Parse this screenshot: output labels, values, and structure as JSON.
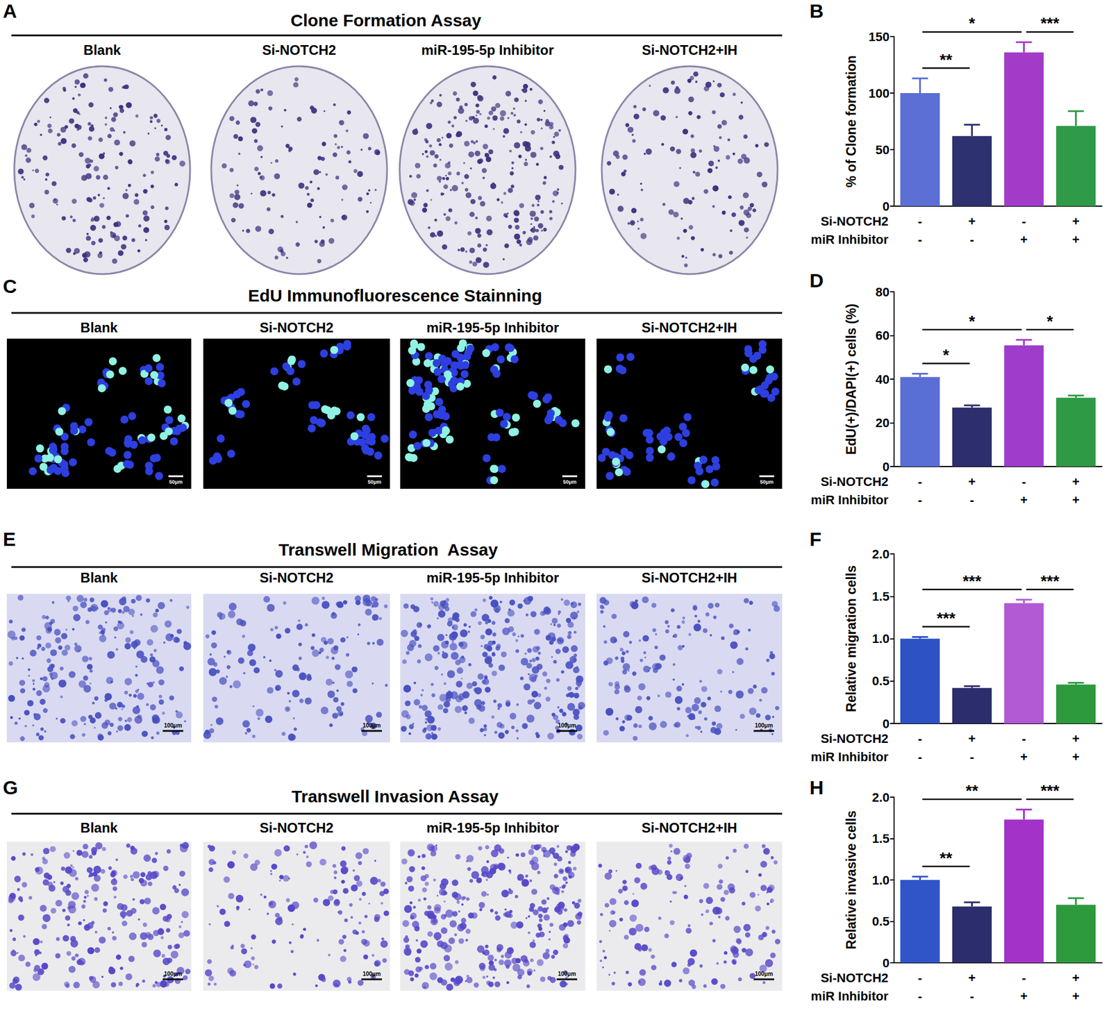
{
  "chart_data": [
    {
      "type": "bar",
      "title": "B",
      "y_label": "% of Clone formation",
      "categories": [
        null,
        null,
        null,
        null
      ],
      "x_rows": [
        {
          "label": "Si-NOTCH2",
          "marks": [
            "-",
            "+",
            "-",
            "+"
          ]
        },
        {
          "label": "miR Inhibitor",
          "marks": [
            "-",
            "-",
            "+",
            "+"
          ]
        }
      ],
      "values": [
        100,
        62,
        136,
        71
      ],
      "errors": [
        13,
        10,
        9,
        13
      ],
      "colors": [
        "#5b6fd4",
        "#2e3170",
        "#a33bc9",
        "#2f9a48"
      ],
      "ylim": [
        0,
        150
      ],
      "yticks": [
        0,
        50,
        100,
        150
      ],
      "grid": false,
      "comparisons": [
        {
          "between": [
            0,
            1
          ],
          "label": "**"
        },
        {
          "between": [
            0,
            2
          ],
          "label": "*"
        },
        {
          "between": [
            2,
            3
          ],
          "label": "***"
        }
      ]
    },
    {
      "type": "bar",
      "title": "D",
      "y_label": "EdU(+)/DAPI(+) cells (%)",
      "categories": [
        null,
        null,
        null,
        null
      ],
      "x_rows": [
        {
          "label": "Si-NOTCH2",
          "marks": [
            "-",
            "+",
            "-",
            "+"
          ]
        },
        {
          "label": "miR Inhibitor",
          "marks": [
            "-",
            "-",
            "+",
            "+"
          ]
        }
      ],
      "values": [
        41,
        27,
        55.5,
        31.5
      ],
      "errors": [
        1.5,
        1,
        2.5,
        1
      ],
      "colors": [
        "#5a6fd6",
        "#2c2f6b",
        "#a03ccc",
        "#2f9a46"
      ],
      "ylim": [
        0,
        80
      ],
      "yticks": [
        0,
        20,
        40,
        60,
        80
      ],
      "grid": false,
      "comparisons": [
        {
          "between": [
            0,
            1
          ],
          "label": "*"
        },
        {
          "between": [
            0,
            2
          ],
          "label": "*"
        },
        {
          "between": [
            2,
            3
          ],
          "label": "*"
        }
      ]
    },
    {
      "type": "bar",
      "title": "F",
      "y_label": "Relative migration cells",
      "categories": [
        null,
        null,
        null,
        null
      ],
      "x_rows": [
        {
          "label": "Si-NOTCH2",
          "marks": [
            "-",
            "+",
            "-",
            "+"
          ]
        },
        {
          "label": "miR Inhibitor",
          "marks": [
            "-",
            "-",
            "+",
            "+"
          ]
        }
      ],
      "values": [
        1.0,
        0.42,
        1.42,
        0.46
      ],
      "errors": [
        0.02,
        0.02,
        0.04,
        0.02
      ],
      "colors": [
        "#2d52c4",
        "#2b2d6c",
        "#b25ad4",
        "#2d9a3e"
      ],
      "ylim": [
        0,
        2
      ],
      "yticks": [
        0,
        0.5,
        {
          "value": 1,
          "label": "1.0"
        },
        1.5,
        {
          "value": 2,
          "label": "2.0"
        }
      ],
      "grid": false,
      "comparisons": [
        {
          "between": [
            0,
            1
          ],
          "label": "***"
        },
        {
          "between": [
            0,
            2
          ],
          "label": "***"
        },
        {
          "between": [
            2,
            3
          ],
          "label": "***"
        }
      ]
    },
    {
      "type": "bar",
      "title": "H",
      "y_label": "Relative invasive cells",
      "categories": [
        null,
        null,
        null,
        null
      ],
      "x_rows": [
        {
          "label": "Si-NOTCH2",
          "marks": [
            "-",
            "+",
            "-",
            "+"
          ]
        },
        {
          "label": "miR Inhibitor",
          "marks": [
            "-",
            "-",
            "+",
            "+"
          ]
        }
      ],
      "values": [
        1.0,
        0.68,
        1.73,
        0.7
      ],
      "errors": [
        0.04,
        0.05,
        0.12,
        0.08
      ],
      "colors": [
        "#2f55c8",
        "#2b2d6c",
        "#a232c8",
        "#2d9a3e"
      ],
      "ylim": [
        0,
        2
      ],
      "yticks": [
        0,
        0.5,
        {
          "value": 1,
          "label": "1.0"
        },
        1.5,
        {
          "value": 2,
          "label": "2.0"
        }
      ],
      "grid": false,
      "comparisons": [
        {
          "between": [
            0,
            1
          ],
          "label": "**"
        },
        {
          "between": [
            0,
            2
          ],
          "label": "**"
        },
        {
          "between": [
            2,
            3
          ],
          "label": "***"
        }
      ]
    }
  ],
  "image_panels": [
    {
      "letter": "A",
      "title": "Clone Formation Assay",
      "kind": "plate",
      "labels": [
        "Blank",
        "Si-NOTCH2",
        "miR-195-5p Inhibitor",
        "Si-NOTCH2+IH"
      ]
    },
    {
      "letter": "C",
      "title": "EdU Immunofluorescence Stainning",
      "kind": "fluorescence",
      "labels": [
        "Blank",
        "Si-NOTCH2",
        "miR-195-5p Inhibitor",
        "Si-NOTCH2+IH"
      ],
      "scale_bar": "50μm"
    },
    {
      "letter": "E",
      "title": "Transwell Migration  Assay",
      "kind": "transwell",
      "labels": [
        "Blank",
        "Si-NOTCH2",
        "miR-195-5p Inhibitor",
        "Si-NOTCH2+IH"
      ],
      "scale_bar": "100μm"
    },
    {
      "letter": "G",
      "title": "Transwell Invasion Assay",
      "kind": "transwell",
      "labels": [
        "Blank",
        "Si-NOTCH2",
        "miR-195-5p Inhibitor",
        "Si-NOTCH2+IH"
      ],
      "scale_bar": "100μm"
    }
  ]
}
